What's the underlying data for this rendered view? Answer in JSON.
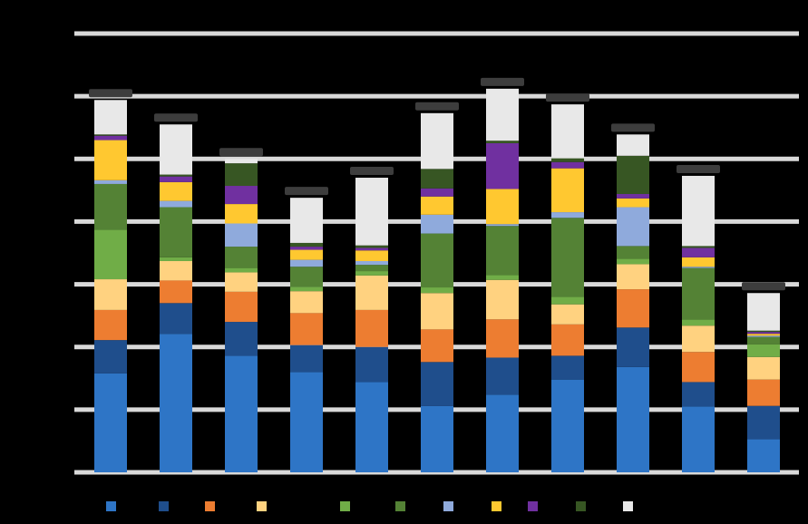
{
  "chart_data": {
    "type": "bar",
    "stacked": true,
    "title": "",
    "xlabel": "",
    "ylabel": "",
    "ylim": [
      0,
      7
    ],
    "ytick_step": 1,
    "grid": true,
    "legend_position": "bottom",
    "categories": [
      "",
      "",
      "",
      "",
      "",
      "",
      "",
      "",
      "",
      "",
      ""
    ],
    "series": [
      {
        "color": "#2e75c6",
        "values": [
          1.58,
          2.21,
          1.86,
          1.6,
          1.44,
          1.06,
          1.24,
          1.48,
          1.68,
          1.05,
          0.53
        ]
      },
      {
        "color": "#1f4e8c",
        "values": [
          0.53,
          0.49,
          0.54,
          0.43,
          0.56,
          0.7,
          0.59,
          0.38,
          0.63,
          0.39,
          0.53
        ]
      },
      {
        "color": "#ed7d31",
        "values": [
          0.48,
          0.36,
          0.48,
          0.51,
          0.59,
          0.52,
          0.61,
          0.5,
          0.61,
          0.48,
          0.42
        ]
      },
      {
        "color": "#ffd280",
        "values": [
          0.49,
          0.31,
          0.31,
          0.35,
          0.55,
          0.58,
          0.63,
          0.32,
          0.4,
          0.42,
          0.36
        ]
      },
      {
        "color": "#70ad47",
        "values": [
          0.79,
          0.06,
          0.07,
          0.07,
          0.07,
          0.09,
          0.08,
          0.12,
          0.09,
          0.1,
          0.2
        ]
      },
      {
        "color": "#548235",
        "values": [
          0.73,
          0.8,
          0.34,
          0.32,
          0.1,
          0.86,
          0.78,
          1.26,
          0.2,
          0.82,
          0.12
        ]
      },
      {
        "color": "#8faadc",
        "values": [
          0.06,
          0.1,
          0.37,
          0.11,
          0.06,
          0.3,
          0.03,
          0.09,
          0.62,
          0.02,
          0.02
        ]
      },
      {
        "color": "#ffc830",
        "values": [
          0.64,
          0.3,
          0.31,
          0.16,
          0.17,
          0.29,
          0.56,
          0.7,
          0.14,
          0.15,
          0.03
        ]
      },
      {
        "color": "#7030a0",
        "values": [
          0.07,
          0.09,
          0.29,
          0.05,
          0.04,
          0.13,
          0.73,
          0.1,
          0.07,
          0.15,
          0.03
        ]
      },
      {
        "color": "#375623",
        "values": [
          0.02,
          0.03,
          0.36,
          0.06,
          0.04,
          0.31,
          0.04,
          0.06,
          0.61,
          0.03,
          0.02
        ]
      },
      {
        "color": "#e8e8e8",
        "values": [
          0.55,
          0.8,
          0.07,
          0.72,
          1.08,
          0.89,
          0.83,
          0.86,
          0.34,
          1.12,
          0.6
        ]
      }
    ]
  }
}
